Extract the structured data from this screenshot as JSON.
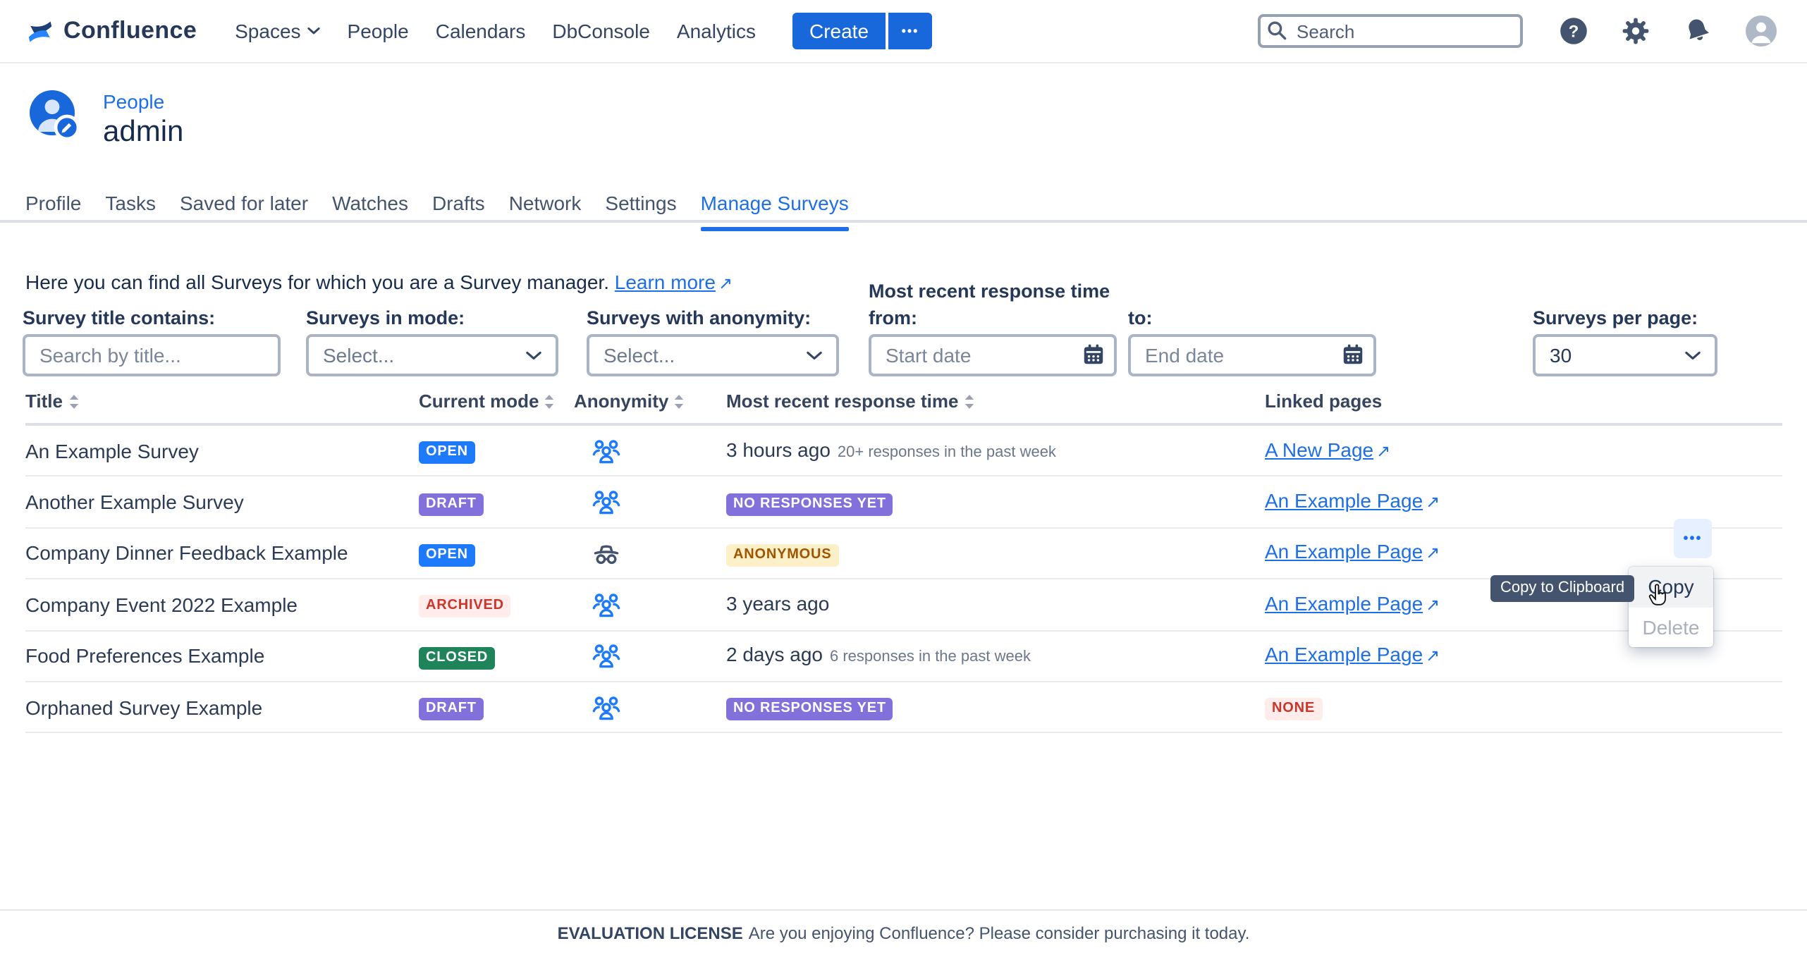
{
  "nav": {
    "logo_text": "Confluence",
    "items": [
      "Spaces",
      "People",
      "Calendars",
      "DbConsole",
      "Analytics"
    ],
    "create_label": "Create",
    "search_placeholder": "Search"
  },
  "icons": {
    "more_dots": "•••",
    "external_arrow": "↗"
  },
  "profile": {
    "eyebrow": "People",
    "username": "admin"
  },
  "tabs": {
    "items": [
      "Profile",
      "Tasks",
      "Saved for later",
      "Watches",
      "Drafts",
      "Network",
      "Settings",
      "Manage Surveys"
    ],
    "active": "Manage Surveys"
  },
  "intro": {
    "text": "Here you can find all Surveys for which you are a Survey manager.",
    "link": "Learn more"
  },
  "filters": {
    "title": {
      "label": "Survey title contains:",
      "placeholder": "Search by title..."
    },
    "mode": {
      "label": "Surveys in mode:",
      "value": "Select..."
    },
    "anonymity": {
      "label": "Surveys with anonymity:",
      "value": "Select..."
    },
    "response_group_label": "Most recent response time",
    "from": {
      "label": "from:",
      "placeholder": "Start date"
    },
    "to": {
      "label": "to:",
      "placeholder": "End date"
    },
    "per_page": {
      "label": "Surveys per page:",
      "value": "30"
    }
  },
  "table": {
    "headers": [
      {
        "label": "Title",
        "sortable": true
      },
      {
        "label": "Current mode",
        "sortable": true
      },
      {
        "label": "Anonymity",
        "sortable": true
      },
      {
        "label": "Most recent response time",
        "sortable": true
      },
      {
        "label": "Linked pages",
        "sortable": false
      }
    ],
    "rows": [
      {
        "title": "An Example Survey",
        "mode": {
          "label": "OPEN",
          "variant": "blue"
        },
        "anonymity_icon": "people-group",
        "response": {
          "text": "3 hours ago",
          "note": "20+ responses in the past week"
        },
        "linked": {
          "type": "link",
          "label": "A New Page"
        }
      },
      {
        "title": "Another Example Survey",
        "mode": {
          "label": "DRAFT",
          "variant": "purple"
        },
        "anonymity_icon": "people-group",
        "response": {
          "badge": {
            "label": "NO RESPONSES YET",
            "variant": "purple"
          }
        },
        "linked": {
          "type": "link",
          "label": "An Example Page"
        }
      },
      {
        "title": "Company Dinner Feedback Example",
        "mode": {
          "label": "OPEN",
          "variant": "blue"
        },
        "anonymity_icon": "incognito",
        "response": {
          "badge": {
            "label": "ANONYMOUS",
            "variant": "yellow-tint"
          }
        },
        "linked": {
          "type": "link",
          "label": "An Example Page"
        },
        "actions_open": true
      },
      {
        "title": "Company Event 2022 Example",
        "mode": {
          "label": "ARCHIVED",
          "variant": "red-tint"
        },
        "anonymity_icon": "people-group",
        "response": {
          "text": "3 years ago"
        },
        "linked": {
          "type": "link",
          "label": "An Example Page"
        }
      },
      {
        "title": "Food Preferences Example",
        "mode": {
          "label": "CLOSED",
          "variant": "green"
        },
        "anonymity_icon": "people-group",
        "response": {
          "text": "2 days ago",
          "note": "6 responses in the past week"
        },
        "linked": {
          "type": "link",
          "label": "An Example Page"
        }
      },
      {
        "title": "Orphaned Survey Example",
        "mode": {
          "label": "DRAFT",
          "variant": "purple"
        },
        "anonymity_icon": "people-group",
        "response": {
          "badge": {
            "label": "NO RESPONSES YET",
            "variant": "purple"
          }
        },
        "linked": {
          "type": "badge",
          "label": "NONE",
          "variant": "red-tint"
        }
      }
    ]
  },
  "context_menu": {
    "items": [
      {
        "label": "Copy",
        "state": "hover"
      },
      {
        "label": "Delete",
        "state": "disabled"
      }
    ]
  },
  "tooltip": {
    "text": "Copy to Clipboard"
  },
  "footer": {
    "strong": "EVALUATION LICENSE",
    "text": "Are you enjoying Confluence? Please consider purchasing it today."
  },
  "colors": {
    "brand_blue": "#1868db",
    "link_blue": "#1d6fe8",
    "badge_blue": "#1d7afc",
    "badge_purple": "#8270db",
    "badge_green": "#1f845a",
    "tint_red_bg": "#ffeceb",
    "tint_red_text": "#c9372c",
    "tint_yellow_bg": "#fbf0c8",
    "tint_yellow_text": "#a15400",
    "nav_text": "#344563",
    "tooltip_bg": "#44546f"
  }
}
